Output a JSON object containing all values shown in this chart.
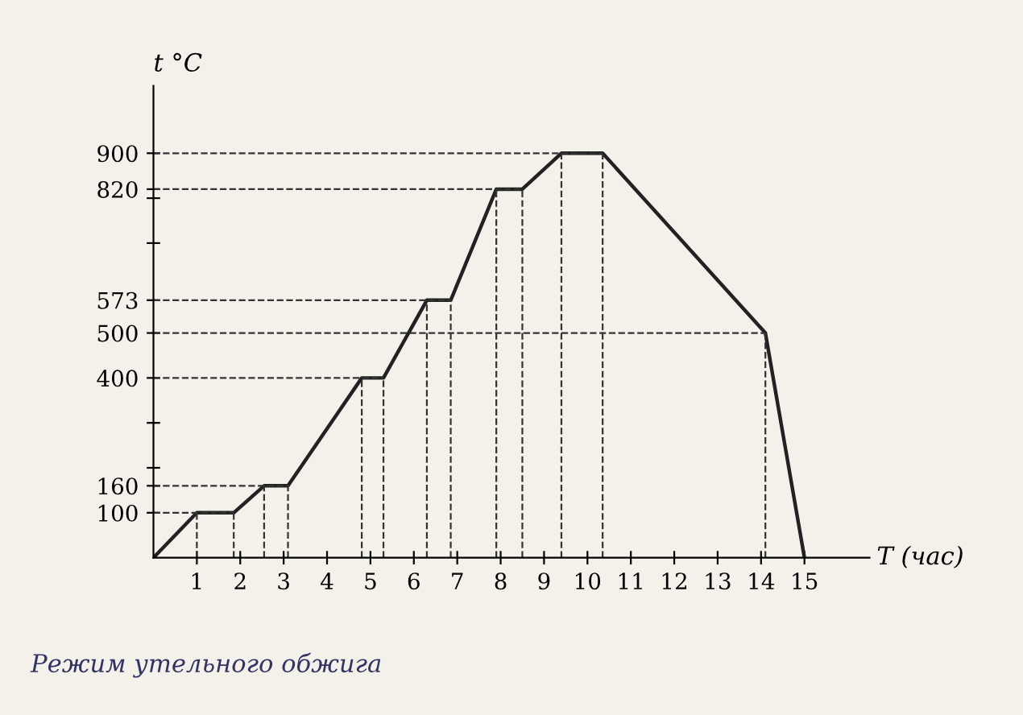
{
  "chart_data": {
    "type": "line",
    "title": "Режим утельного обжига",
    "xlabel": "T (час)",
    "ylabel": "t °C",
    "x": [
      0,
      1,
      1.85,
      2.55,
      3.1,
      4.8,
      5.3,
      6.3,
      6.85,
      7.9,
      8.5,
      9.4,
      10.35,
      14.1,
      15
    ],
    "series": [
      {
        "color": "#222222",
        "values": [
          0,
          100,
          100,
          160,
          160,
          400,
          400,
          573,
          573,
          820,
          820,
          900,
          900,
          500,
          0
        ]
      }
    ],
    "xlim": [
      0,
      16.5
    ],
    "ylim": [
      0,
      1050
    ],
    "xticks": [
      1,
      2,
      3,
      4,
      5,
      6,
      7,
      8,
      9,
      10,
      11,
      12,
      13,
      14,
      15
    ],
    "yticks": [
      100,
      160,
      {
        "value": 200,
        "label": null
      },
      {
        "value": 300,
        "label": null
      },
      400,
      500,
      573,
      {
        "value": 700,
        "label": null
      },
      {
        "value": 800,
        "label": null
      },
      820,
      900
    ],
    "ref_lines": [
      {
        "axis": "y",
        "value": 100,
        "line_style": "dashed"
      },
      {
        "axis": "y",
        "value": 160,
        "line_style": "dashed"
      },
      {
        "axis": "y",
        "value": 400,
        "line_style": "dashed"
      },
      {
        "axis": "y",
        "value": 500,
        "line_style": "dashed"
      },
      {
        "axis": "y",
        "value": 573,
        "line_style": "dashed"
      },
      {
        "axis": "y",
        "value": 820,
        "line_style": "dashed"
      },
      {
        "axis": "y",
        "value": 900,
        "line_style": "dashed"
      },
      {
        "axis": "x",
        "value": 1,
        "line_style": "dashed"
      },
      {
        "axis": "x",
        "value": 1.85,
        "line_style": "dashed"
      },
      {
        "axis": "x",
        "value": 2.55,
        "line_style": "dashed"
      },
      {
        "axis": "x",
        "value": 3.1,
        "line_style": "dashed"
      },
      {
        "axis": "x",
        "value": 4.8,
        "line_style": "dashed"
      },
      {
        "axis": "x",
        "value": 5.3,
        "line_style": "dashed"
      },
      {
        "axis": "x",
        "value": 6.3,
        "line_style": "dashed"
      },
      {
        "axis": "x",
        "value": 6.85,
        "line_style": "dashed"
      },
      {
        "axis": "x",
        "value": 7.9,
        "line_style": "dashed"
      },
      {
        "axis": "x",
        "value": 8.5,
        "line_style": "dashed"
      },
      {
        "axis": "x",
        "value": 9.4,
        "line_style": "dashed"
      },
      {
        "axis": "x",
        "value": 10.35,
        "line_style": "dashed"
      },
      {
        "axis": "x",
        "value": 14.1,
        "line_style": "dashed"
      }
    ],
    "grid": false,
    "legend": false,
    "marker": "none",
    "line_style": "solid"
  }
}
